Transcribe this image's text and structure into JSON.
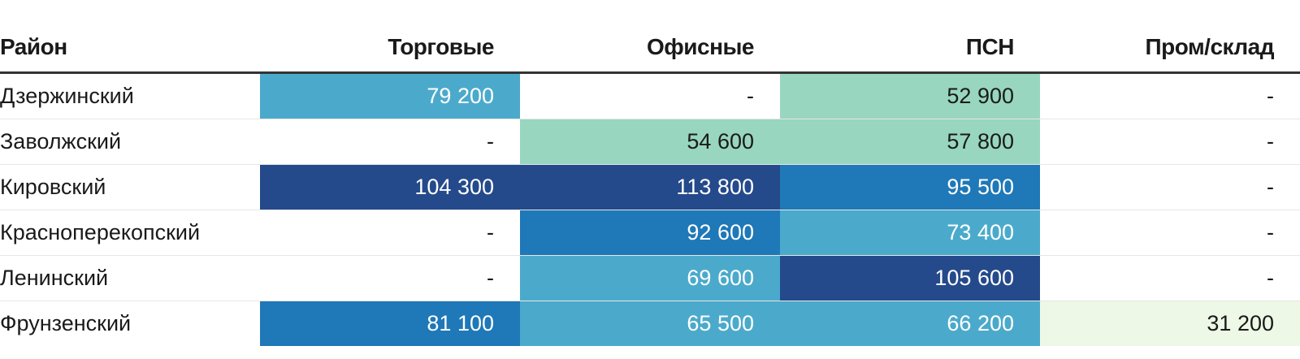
{
  "chart_data": {
    "type": "table",
    "columns": [
      "Район",
      "Торговые",
      "Офисные",
      "ПСН",
      "Пром/склад"
    ],
    "rows": [
      {
        "name": "Дзержинский",
        "values": [
          "79 200",
          "-",
          "52 900",
          "-"
        ],
        "numeric": [
          79200,
          null,
          52900,
          null
        ]
      },
      {
        "name": "Заволжский",
        "values": [
          "-",
          "54 600",
          "57 800",
          "-"
        ],
        "numeric": [
          null,
          54600,
          57800,
          null
        ]
      },
      {
        "name": "Кировский",
        "values": [
          "104 300",
          "113 800",
          "95 500",
          "-"
        ],
        "numeric": [
          104300,
          113800,
          95500,
          null
        ]
      },
      {
        "name": "Красноперекопский",
        "values": [
          "-",
          "92 600",
          "73 400",
          "-"
        ],
        "numeric": [
          null,
          92600,
          73400,
          null
        ]
      },
      {
        "name": "Ленинский",
        "values": [
          "-",
          "69 600",
          "105 600",
          "-"
        ],
        "numeric": [
          null,
          69600,
          105600,
          null
        ]
      },
      {
        "name": "Фрунзенский",
        "values": [
          "81 100",
          "65 500",
          "66 200",
          "31 200"
        ],
        "numeric": [
          81100,
          65500,
          66200,
          31200
        ]
      }
    ],
    "color_scale": [
      {
        "min": 0,
        "max": 50000,
        "color": "#edf8e6",
        "text": "#1a1a1a"
      },
      {
        "min": 50000,
        "max": 60000,
        "color": "#98d6c0",
        "text": "#1a1a1a"
      },
      {
        "min": 60000,
        "max": 80000,
        "color": "#4baacb",
        "text": "#ffffff"
      },
      {
        "min": 80000,
        "max": 100000,
        "color": "#1f78b7",
        "text": "#ffffff"
      },
      {
        "min": 100000,
        "max": 200000,
        "color": "#254a8b",
        "text": "#ffffff"
      }
    ]
  }
}
